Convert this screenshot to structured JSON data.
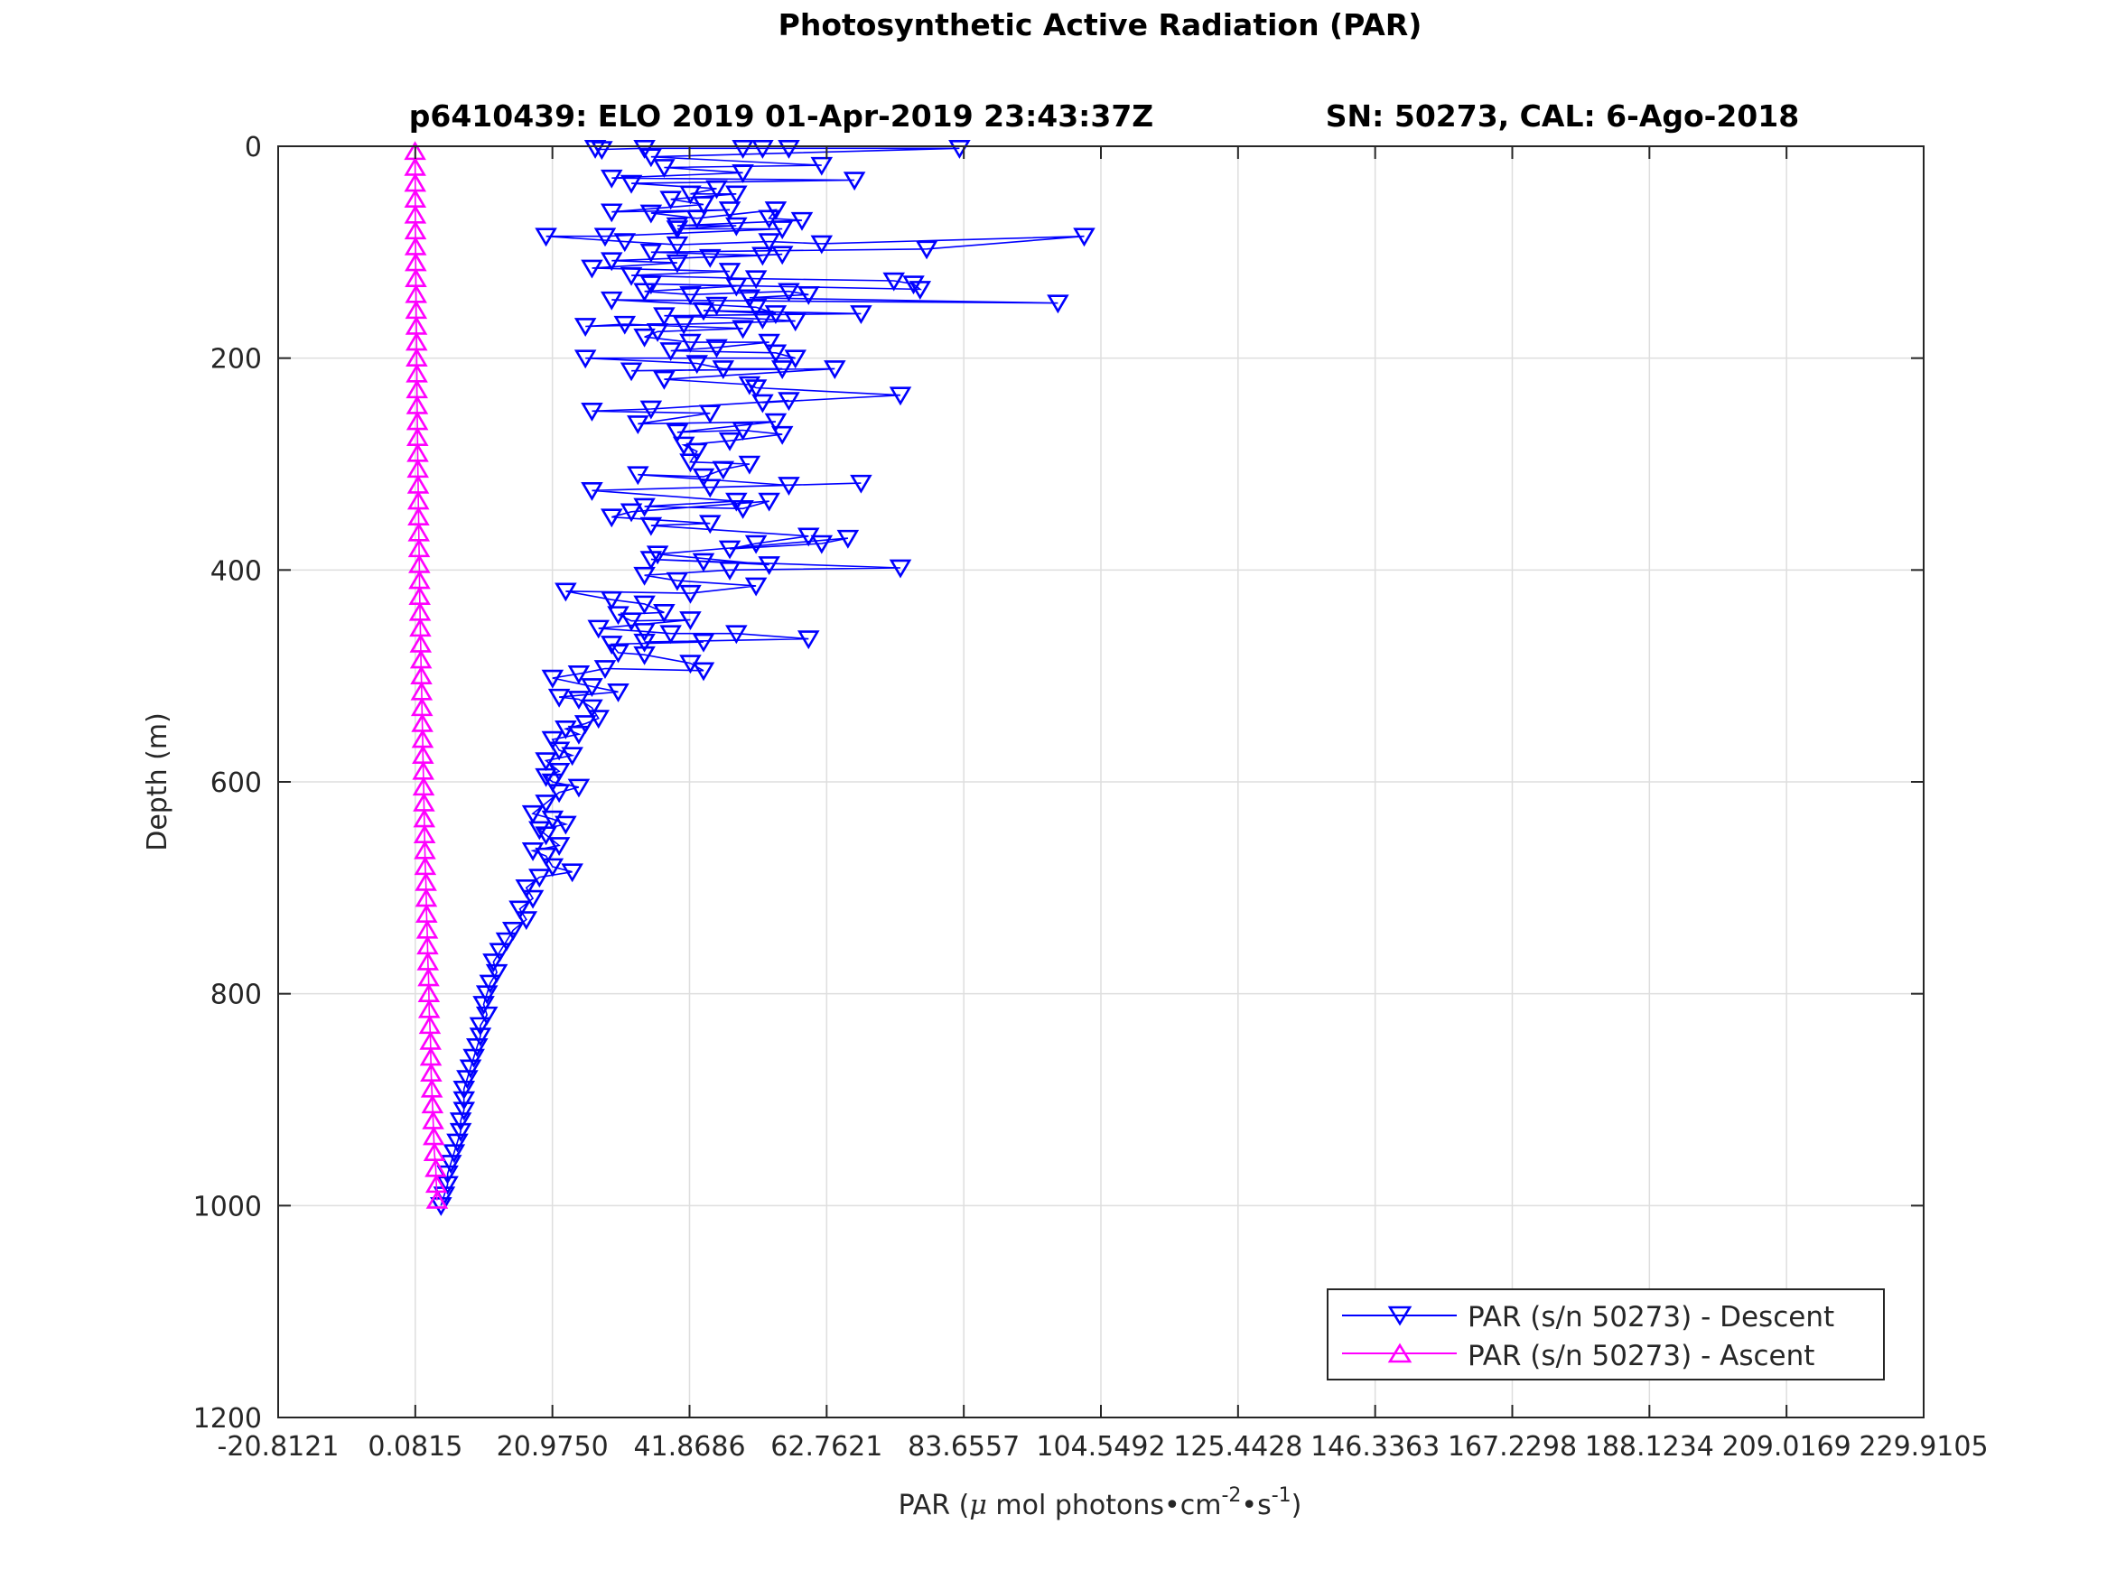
{
  "chart_data": {
    "type": "scatter",
    "title": "Photosynthetic Active Radiation (PAR)",
    "subtitle_left": "p6410439: ELO 2019 01-Apr-2019 23:43:37Z",
    "subtitle_right": "SN: 50273, CAL: 6-Ago-2018",
    "xlabel_main": "PAR (",
    "xlabel_mu": "μ",
    "xlabel_mid": " mol photons•cm",
    "xlabel_sup1": "-2",
    "xlabel_mid2": "•s",
    "xlabel_sup2": "-1",
    "xlabel_end": ")",
    "ylabel": "Depth (m)",
    "xlim": [
      -20.8121,
      229.9105
    ],
    "ylim": [
      0,
      1200
    ],
    "y_reversed": true,
    "grid": true,
    "legend_position": "bottom-right",
    "x_ticks": [
      -20.8121,
      0.0815,
      20.975,
      41.8686,
      62.7621,
      83.6557,
      104.5492,
      125.4428,
      146.3363,
      167.2298,
      188.1234,
      209.0169,
      229.9105
    ],
    "x_tick_labels": [
      "-20.8121",
      "0.0815",
      "20.9750",
      "41.8686",
      "62.7621",
      "83.6557",
      "104.5492",
      "125.4428",
      "146.3363",
      "167.2298",
      "188.1234",
      "209.0169",
      "229.9105"
    ],
    "y_ticks": [
      0,
      200,
      400,
      600,
      800,
      1000,
      1200
    ],
    "y_tick_labels": [
      "0",
      "200",
      "400",
      "600",
      "800",
      "1000",
      "1200"
    ],
    "series": [
      {
        "name": "PAR (s/n 50273) - Descent",
        "color": "#0000ff",
        "marker": "triangle-down",
        "points": [
          [
            27.5,
            2
          ],
          [
            28.5,
            3
          ],
          [
            35,
            2
          ],
          [
            50,
            2
          ],
          [
            53,
            2
          ],
          [
            57,
            2
          ],
          [
            83,
            2
          ],
          [
            36,
            10
          ],
          [
            62,
            18
          ],
          [
            38,
            20
          ],
          [
            50,
            25
          ],
          [
            30,
            30
          ],
          [
            67,
            32
          ],
          [
            33,
            35
          ],
          [
            46,
            40
          ],
          [
            42,
            45
          ],
          [
            49,
            45
          ],
          [
            39,
            50
          ],
          [
            44,
            55
          ],
          [
            30,
            62
          ],
          [
            48,
            60
          ],
          [
            36,
            63
          ],
          [
            43,
            68
          ],
          [
            55,
            60
          ],
          [
            54,
            68
          ],
          [
            59,
            70
          ],
          [
            40,
            75
          ],
          [
            49,
            75
          ],
          [
            40,
            78
          ],
          [
            56,
            78
          ],
          [
            29,
            85
          ],
          [
            20,
            85
          ],
          [
            32,
            90
          ],
          [
            40,
            93
          ],
          [
            54,
            90
          ],
          [
            62,
            92
          ],
          [
            102,
            85
          ],
          [
            78,
            97
          ],
          [
            36,
            100
          ],
          [
            53,
            103
          ],
          [
            45,
            105
          ],
          [
            56,
            102
          ],
          [
            30,
            108
          ],
          [
            40,
            110
          ],
          [
            27,
            115
          ],
          [
            48,
            118
          ],
          [
            33,
            122
          ],
          [
            52,
            125
          ],
          [
            73,
            127
          ],
          [
            76,
            130
          ],
          [
            77,
            135
          ],
          [
            36,
            130
          ],
          [
            49,
            132
          ],
          [
            35,
            137
          ],
          [
            42,
            140
          ],
          [
            57,
            137
          ],
          [
            60,
            140
          ],
          [
            51,
            143
          ],
          [
            98,
            148
          ],
          [
            30,
            145
          ],
          [
            46,
            150
          ],
          [
            52,
            152
          ],
          [
            55,
            158
          ],
          [
            44,
            155
          ],
          [
            68,
            158
          ],
          [
            38,
            160
          ],
          [
            53,
            163
          ],
          [
            58,
            165
          ],
          [
            41,
            168
          ],
          [
            26,
            170
          ],
          [
            32,
            168
          ],
          [
            50,
            172
          ],
          [
            37,
            175
          ],
          [
            35,
            180
          ],
          [
            42,
            185
          ],
          [
            54,
            185
          ],
          [
            46,
            190
          ],
          [
            39,
            193
          ],
          [
            55,
            195
          ],
          [
            58,
            200
          ],
          [
            26,
            200
          ],
          [
            43,
            205
          ],
          [
            47,
            210
          ],
          [
            56,
            210
          ],
          [
            33,
            212
          ],
          [
            64,
            210
          ],
          [
            38,
            220
          ],
          [
            51,
            225
          ],
          [
            52,
            228
          ],
          [
            74,
            235
          ],
          [
            53,
            242
          ],
          [
            57,
            240
          ],
          [
            36,
            248
          ],
          [
            27,
            250
          ],
          [
            45,
            252
          ],
          [
            34,
            262
          ],
          [
            55,
            260
          ],
          [
            40,
            270
          ],
          [
            50,
            268
          ],
          [
            56,
            272
          ],
          [
            48,
            278
          ],
          [
            41,
            282
          ],
          [
            43,
            288
          ],
          [
            42,
            298
          ],
          [
            51,
            300
          ],
          [
            47,
            305
          ],
          [
            44,
            312
          ],
          [
            34,
            310
          ],
          [
            57,
            320
          ],
          [
            45,
            322
          ],
          [
            68,
            318
          ],
          [
            27,
            325
          ],
          [
            49,
            335
          ],
          [
            35,
            340
          ],
          [
            50,
            342
          ],
          [
            54,
            335
          ],
          [
            33,
            345
          ],
          [
            30,
            350
          ],
          [
            45,
            356
          ],
          [
            36,
            358
          ],
          [
            60,
            368
          ],
          [
            52,
            375
          ],
          [
            48,
            380
          ],
          [
            62,
            375
          ],
          [
            66,
            370
          ],
          [
            37,
            385
          ],
          [
            54,
            395
          ],
          [
            44,
            392
          ],
          [
            36,
            390
          ],
          [
            74,
            398
          ],
          [
            48,
            400
          ],
          [
            35,
            405
          ],
          [
            40,
            410
          ],
          [
            52,
            415
          ],
          [
            42,
            422
          ],
          [
            23,
            420
          ],
          [
            30,
            428
          ],
          [
            35,
            432
          ],
          [
            38,
            440
          ],
          [
            31,
            442
          ],
          [
            33,
            448
          ],
          [
            42,
            447
          ],
          [
            28,
            455
          ],
          [
            35,
            458
          ],
          [
            39,
            460
          ],
          [
            49,
            460
          ],
          [
            60,
            465
          ],
          [
            35,
            468
          ],
          [
            44,
            468
          ],
          [
            30,
            470
          ],
          [
            31,
            478
          ],
          [
            35,
            480
          ],
          [
            42,
            488
          ],
          [
            44,
            495
          ],
          [
            29,
            493
          ],
          [
            25,
            498
          ],
          [
            21,
            502
          ],
          [
            27,
            510
          ],
          [
            31,
            515
          ],
          [
            22,
            520
          ],
          [
            25,
            522
          ],
          [
            27,
            530
          ],
          [
            28,
            540
          ],
          [
            26,
            545
          ],
          [
            23,
            550
          ],
          [
            25,
            555
          ],
          [
            21,
            560
          ],
          [
            22,
            570
          ],
          [
            24,
            575
          ],
          [
            20,
            580
          ],
          [
            22,
            590
          ],
          [
            20,
            595
          ],
          [
            21,
            600
          ],
          [
            25,
            605
          ],
          [
            22,
            610
          ],
          [
            20,
            620
          ],
          [
            18,
            630
          ],
          [
            21,
            635
          ],
          [
            23,
            640
          ],
          [
            19,
            645
          ],
          [
            20,
            650
          ],
          [
            22,
            660
          ],
          [
            18,
            665
          ],
          [
            20,
            670
          ],
          [
            21,
            680
          ],
          [
            24,
            685
          ],
          [
            19,
            690
          ],
          [
            17,
            700
          ],
          [
            18,
            710
          ],
          [
            16,
            720
          ],
          [
            17,
            730
          ],
          [
            15,
            740
          ],
          [
            14,
            750
          ],
          [
            13,
            760
          ],
          [
            12,
            770
          ],
          [
            12.5,
            780
          ],
          [
            11.5,
            790
          ],
          [
            11,
            800
          ],
          [
            10.5,
            810
          ],
          [
            11,
            820
          ],
          [
            10,
            830
          ],
          [
            10,
            840
          ],
          [
            9.5,
            850
          ],
          [
            9,
            860
          ],
          [
            8.5,
            870
          ],
          [
            8,
            880
          ],
          [
            7.5,
            890
          ],
          [
            7.5,
            900
          ],
          [
            7.5,
            910
          ],
          [
            7,
            920
          ],
          [
            7,
            930
          ],
          [
            6.5,
            940
          ],
          [
            6,
            950
          ],
          [
            5.5,
            960
          ],
          [
            5,
            970
          ],
          [
            5,
            980
          ],
          [
            4.5,
            990
          ],
          [
            4,
            1000
          ]
        ]
      },
      {
        "name": "PAR (s/n 50273) - Ascent",
        "color": "#ff00ff",
        "marker": "triangle-up",
        "points": [
          [
            3.4,
            995
          ],
          [
            3.3,
            980
          ],
          [
            3.2,
            965
          ],
          [
            3.0,
            950
          ],
          [
            2.9,
            935
          ],
          [
            2.8,
            920
          ],
          [
            2.7,
            905
          ],
          [
            2.6,
            890
          ],
          [
            2.5,
            875
          ],
          [
            2.45,
            860
          ],
          [
            2.4,
            845
          ],
          [
            2.3,
            830
          ],
          [
            2.2,
            815
          ],
          [
            2.15,
            800
          ],
          [
            2.1,
            785
          ],
          [
            2.0,
            770
          ],
          [
            1.95,
            755
          ],
          [
            1.9,
            740
          ],
          [
            1.8,
            725
          ],
          [
            1.75,
            710
          ],
          [
            1.7,
            695
          ],
          [
            1.6,
            680
          ],
          [
            1.55,
            665
          ],
          [
            1.5,
            650
          ],
          [
            1.45,
            635
          ],
          [
            1.4,
            620
          ],
          [
            1.35,
            605
          ],
          [
            1.3,
            590
          ],
          [
            1.25,
            575
          ],
          [
            1.2,
            560
          ],
          [
            1.15,
            545
          ],
          [
            1.1,
            530
          ],
          [
            1.05,
            515
          ],
          [
            1.0,
            500
          ],
          [
            0.95,
            485
          ],
          [
            0.9,
            470
          ],
          [
            0.85,
            455
          ],
          [
            0.8,
            440
          ],
          [
            0.75,
            425
          ],
          [
            0.72,
            410
          ],
          [
            0.7,
            395
          ],
          [
            0.66,
            380
          ],
          [
            0.62,
            365
          ],
          [
            0.58,
            350
          ],
          [
            0.55,
            335
          ],
          [
            0.52,
            320
          ],
          [
            0.48,
            305
          ],
          [
            0.45,
            290
          ],
          [
            0.42,
            275
          ],
          [
            0.4,
            260
          ],
          [
            0.37,
            245
          ],
          [
            0.34,
            230
          ],
          [
            0.32,
            215
          ],
          [
            0.3,
            200
          ],
          [
            0.28,
            185
          ],
          [
            0.25,
            170
          ],
          [
            0.22,
            155
          ],
          [
            0.2,
            140
          ],
          [
            0.17,
            125
          ],
          [
            0.15,
            110
          ],
          [
            0.13,
            95
          ],
          [
            0.11,
            80
          ],
          [
            0.09,
            65
          ],
          [
            0.08,
            50
          ],
          [
            0.07,
            35
          ],
          [
            0.06,
            20
          ],
          [
            0.05,
            5
          ]
        ]
      }
    ]
  }
}
